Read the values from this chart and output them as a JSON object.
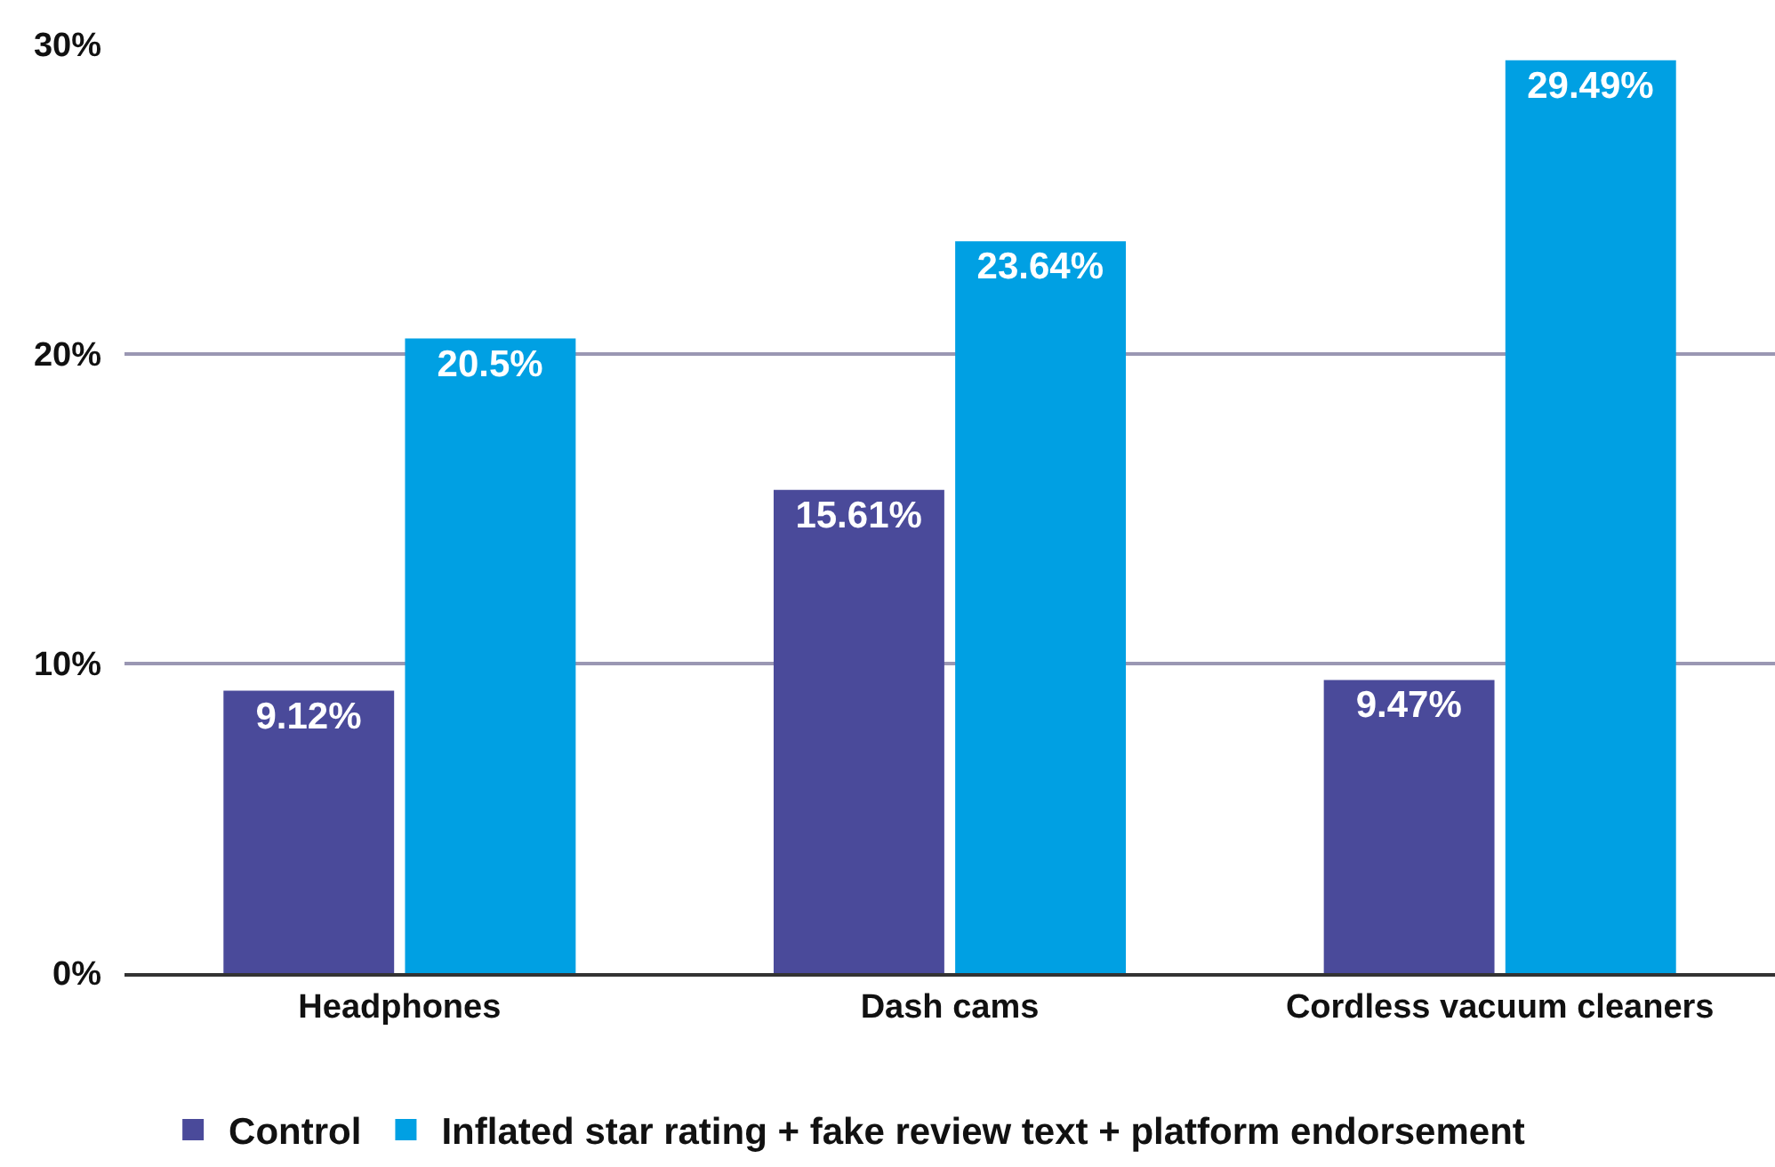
{
  "chart_data": {
    "type": "bar",
    "categories": [
      "Headphones",
      "Dash cams",
      "Cordless vacuum cleaners"
    ],
    "series": [
      {
        "name": "Control",
        "color": "#4a4a9a",
        "values": [
          9.12,
          15.61,
          9.47
        ],
        "value_labels": [
          "9.12%",
          "15.61%",
          "9.47%"
        ]
      },
      {
        "name": "Inflated star rating + fake review text + platform endorsement",
        "color": "#00a0e3",
        "values": [
          20.5,
          23.64,
          29.49
        ],
        "value_labels": [
          "20.5%",
          "23.64%",
          "29.49%"
        ]
      }
    ],
    "ylim": [
      0,
      30
    ],
    "yticks": [
      {
        "value": 0,
        "label": "0%"
      },
      {
        "value": 10,
        "label": "10%"
      },
      {
        "value": 20,
        "label": "20%"
      },
      {
        "value": 30,
        "label": "30%"
      }
    ],
    "grid": "y",
    "legend": "bottom"
  }
}
